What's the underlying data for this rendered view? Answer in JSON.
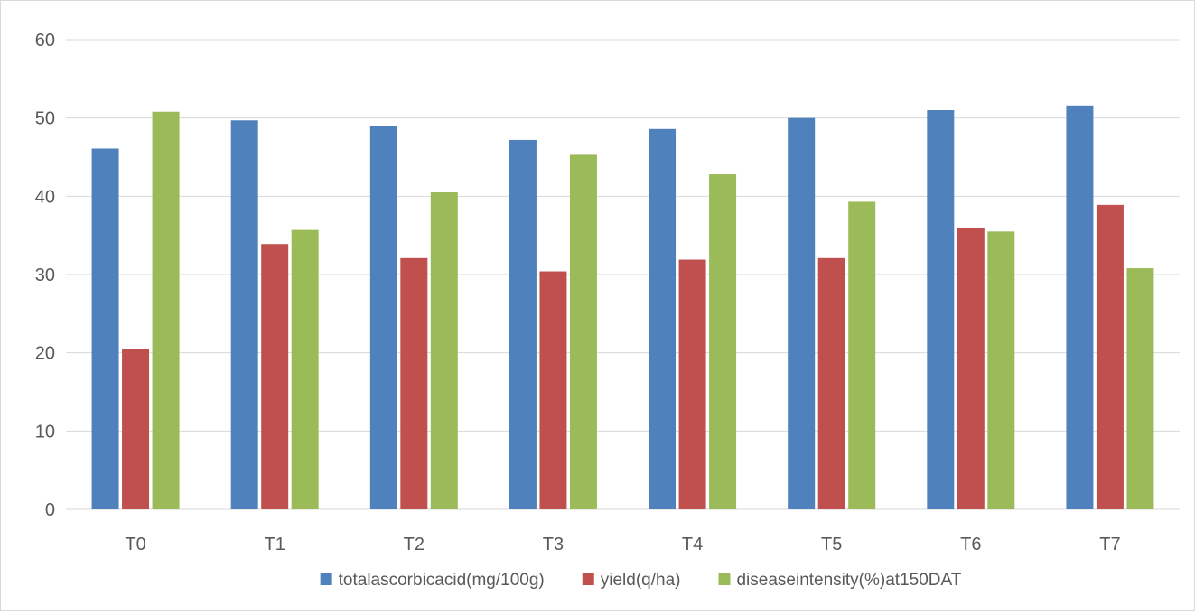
{
  "chart_data": {
    "type": "bar",
    "categories": [
      "T0",
      "T1",
      "T2",
      "T3",
      "T4",
      "T5",
      "T6",
      "T7"
    ],
    "series": [
      {
        "name": "totalascorbicacid(mg/100g)",
        "color": "#4f81bd",
        "values": [
          46.1,
          49.7,
          49.0,
          47.2,
          48.6,
          50.0,
          51.0,
          51.6
        ]
      },
      {
        "name": "yield(q/ha)",
        "color": "#c0504d",
        "values": [
          20.5,
          33.9,
          32.1,
          30.4,
          31.9,
          32.1,
          35.9,
          38.9
        ]
      },
      {
        "name": "diseaseintensity(%)at150DAT",
        "color": "#9bbb59",
        "values": [
          50.8,
          35.7,
          40.5,
          45.3,
          42.8,
          39.3,
          35.5,
          30.8
        ]
      }
    ],
    "ylim": [
      0,
      60
    ],
    "yticks": [
      "0",
      "10",
      "20",
      "30",
      "40",
      "50",
      "60"
    ],
    "grid": true,
    "legend_position": "bottom",
    "title": "",
    "xlabel": "",
    "ylabel": ""
  }
}
